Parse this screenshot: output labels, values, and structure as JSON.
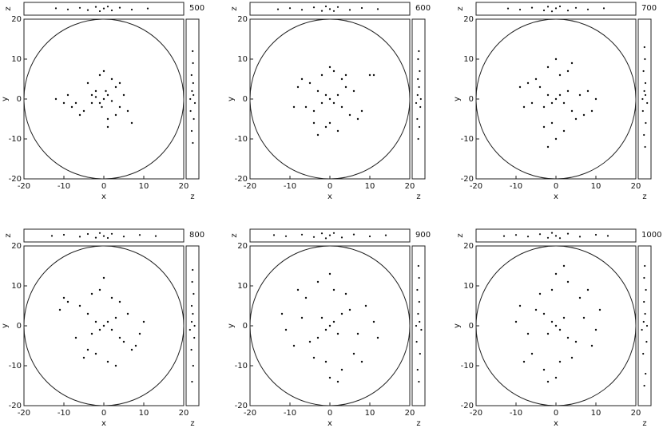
{
  "chart_data": {
    "type": "scatter",
    "xlim": [
      -20,
      20
    ],
    "ylim": [
      -20,
      20
    ],
    "zlim": [
      -4,
      4
    ],
    "xticks": [
      -20,
      -10,
      0,
      10,
      20
    ],
    "yticks": [
      -20,
      -10,
      0,
      10,
      20
    ],
    "xlabel": "x",
    "ylabel": "y",
    "zlabel": "z",
    "color": "#111111",
    "panels": [
      {
        "label": "500",
        "x": [
          0,
          1,
          -1,
          2,
          -2,
          0.5,
          -0.5,
          3,
          -3,
          4,
          -5,
          -8,
          -10,
          -12,
          -6,
          5,
          6,
          2,
          -4,
          1,
          -1,
          3,
          -2,
          7,
          -7,
          0,
          1,
          -3,
          4,
          -9
        ],
        "y": [
          0,
          1,
          -1,
          -0.5,
          0.5,
          2,
          -2,
          3,
          -1,
          -2,
          -3,
          -2,
          -1,
          0,
          -4,
          1,
          -3,
          5,
          4,
          -5,
          6,
          -4,
          2,
          -6,
          -1,
          7,
          -7,
          1,
          4,
          1
        ],
        "top_x": [
          -12,
          -9,
          -6,
          -4,
          -2,
          -1,
          0,
          1,
          2,
          4,
          7,
          11
        ],
        "top_z": [
          0.3,
          -0.4,
          0.6,
          -0.8,
          1.2,
          -1.5,
          0.2,
          1.4,
          -1,
          0.7,
          -0.5,
          0.2
        ],
        "side_z": [
          0.2,
          -0.5,
          0.8,
          -1.2,
          1.5,
          -1.4,
          0.6,
          -0.3,
          0.4,
          -0.6,
          0.3,
          0.1
        ],
        "side_y": [
          -11,
          -8,
          -5,
          -3,
          -1,
          0,
          1,
          2,
          4,
          6,
          9,
          12
        ]
      },
      {
        "label": "600",
        "x": [
          0,
          1,
          -1,
          2,
          -2,
          3,
          -3,
          4,
          -4,
          5,
          -5,
          6,
          -6,
          8,
          -8,
          10,
          -9,
          1,
          -1,
          2,
          -2,
          3,
          0,
          0,
          7,
          -7,
          4,
          -4,
          11,
          -3
        ],
        "y": [
          0,
          -1,
          1,
          1,
          -1,
          -2,
          2,
          3,
          -3,
          -4,
          4,
          2,
          -2,
          -3,
          3,
          6,
          -2,
          7,
          -7,
          -8,
          6,
          5,
          -6,
          8,
          -5,
          5,
          6,
          -6,
          6,
          -9
        ],
        "top_x": [
          -13,
          -10,
          -7,
          -4,
          -2,
          -1,
          0,
          1,
          2,
          5,
          8,
          12
        ],
        "top_z": [
          -0.3,
          0.4,
          -0.6,
          0.9,
          -1.3,
          1.5,
          -0.2,
          -1.4,
          1.1,
          -0.7,
          0.5,
          -0.2
        ],
        "side_z": [
          -0.2,
          0.5,
          -0.8,
          1.1,
          -1.5,
          1.4,
          -0.6,
          0.3,
          -0.4,
          0.7,
          -0.3,
          0.2
        ],
        "side_y": [
          -10,
          -7,
          -5,
          -2,
          -1,
          0,
          1,
          3,
          5,
          7,
          10,
          12
        ]
      },
      {
        "label": "700",
        "x": [
          0,
          1,
          -1,
          2,
          -2,
          3,
          -3,
          4,
          -4,
          6,
          -6,
          8,
          -8,
          9,
          -9,
          1,
          -1,
          2,
          -2,
          5,
          -5,
          0,
          0,
          3,
          -3,
          7,
          -7,
          10,
          -2,
          4
        ],
        "y": [
          0,
          1,
          -1,
          -1,
          1,
          2,
          -2,
          -3,
          3,
          1,
          -1,
          2,
          -2,
          -3,
          3,
          6,
          -6,
          -8,
          8,
          -5,
          5,
          10,
          -10,
          7,
          -7,
          -4,
          4,
          0,
          -12,
          9
        ],
        "top_x": [
          -12,
          -9,
          -6,
          -3,
          -2,
          -1,
          0,
          1,
          3,
          5,
          8,
          12
        ],
        "top_z": [
          0.2,
          -0.5,
          0.7,
          -1,
          1.3,
          -1.6,
          0.3,
          1.5,
          -1.1,
          0.6,
          -0.4,
          0.3
        ],
        "side_z": [
          0.3,
          -0.4,
          0.7,
          -1.1,
          1.6,
          -1.3,
          0.5,
          -0.2,
          0.5,
          -0.7,
          0.2,
          -0.1
        ],
        "side_y": [
          -12,
          -9,
          -6,
          -3,
          -1,
          0,
          1,
          2,
          4,
          7,
          10,
          13
        ]
      },
      {
        "label": "800",
        "x": [
          0,
          1,
          -1,
          2,
          -2,
          3,
          -3,
          4,
          -4,
          5,
          -6,
          -9,
          -11,
          -7,
          6,
          8,
          10,
          2,
          -2,
          1,
          -1,
          3,
          -3,
          0,
          7,
          -5,
          4,
          -4,
          9,
          -10
        ],
        "y": [
          0,
          1,
          -1,
          -1,
          1,
          2,
          -2,
          -3,
          3,
          -4,
          5,
          6,
          4,
          -3,
          3,
          -5,
          1,
          7,
          -7,
          -9,
          9,
          -10,
          8,
          12,
          -6,
          -8,
          6,
          -6,
          -2,
          7
        ],
        "top_x": [
          -13,
          -10,
          -6,
          -4,
          -2,
          -1,
          0,
          1,
          2,
          5,
          9,
          13
        ],
        "top_z": [
          -0.2,
          0.5,
          -0.7,
          1,
          -1.3,
          1.6,
          -0.3,
          -1.5,
          1.1,
          -0.6,
          0.4,
          -0.3
        ],
        "side_z": [
          -0.3,
          0.4,
          -0.7,
          1.1,
          -1.6,
          1.3,
          -0.5,
          0.2,
          -0.5,
          0.7,
          -0.2,
          0.1
        ],
        "side_y": [
          -14,
          -10,
          -6,
          -3,
          -1,
          0,
          1,
          3,
          5,
          8,
          11,
          14
        ]
      },
      {
        "label": "900",
        "x": [
          0,
          1,
          -1,
          2,
          -2,
          3,
          -3,
          5,
          -5,
          7,
          -7,
          9,
          -9,
          11,
          -11,
          1,
          -1,
          3,
          -3,
          6,
          -6,
          0,
          0,
          4,
          -4,
          8,
          -8,
          12,
          -12,
          2
        ],
        "y": [
          0,
          1,
          -1,
          -2,
          2,
          3,
          -3,
          4,
          -4,
          -2,
          2,
          5,
          -5,
          1,
          -1,
          9,
          -9,
          -11,
          11,
          -7,
          7,
          13,
          -13,
          8,
          -8,
          -9,
          9,
          -3,
          3,
          -14
        ],
        "top_x": [
          -14,
          -11,
          -7,
          -4,
          -2,
          -1,
          0,
          1,
          3,
          6,
          10,
          14
        ],
        "top_z": [
          0.3,
          -0.4,
          0.6,
          -0.9,
          1.4,
          -1.7,
          0.2,
          1.6,
          -1.2,
          0.7,
          -0.5,
          0.2
        ],
        "side_z": [
          0.2,
          -0.6,
          0.9,
          -1.2,
          1.7,
          -1.5,
          0.6,
          -0.3,
          0.4,
          -0.8,
          0.3,
          -0.1
        ],
        "side_y": [
          -14,
          -11,
          -7,
          -4,
          -1,
          0,
          1,
          3,
          6,
          9,
          12,
          15
        ]
      },
      {
        "label": "1000",
        "x": [
          0,
          1,
          -1,
          2,
          -2,
          3,
          -3,
          5,
          -5,
          7,
          -7,
          9,
          -9,
          10,
          -10,
          1,
          -1,
          3,
          -3,
          6,
          -6,
          0,
          0,
          4,
          -4,
          8,
          -8,
          11,
          -2,
          2
        ],
        "y": [
          0,
          -1,
          1,
          2,
          -2,
          -3,
          3,
          -4,
          4,
          2,
          -2,
          -5,
          5,
          -1,
          1,
          -9,
          9,
          11,
          -11,
          7,
          -7,
          -13,
          13,
          -8,
          8,
          9,
          -9,
          4,
          -14,
          15
        ],
        "top_x": [
          -13,
          -10,
          -7,
          -4,
          -2,
          -1,
          0,
          1,
          3,
          6,
          10,
          13
        ],
        "top_z": [
          -0.3,
          0.4,
          -0.6,
          0.9,
          -1.4,
          1.7,
          -0.2,
          -1.6,
          1.2,
          -0.7,
          0.5,
          -0.2
        ],
        "side_z": [
          -0.2,
          0.6,
          -0.9,
          1.2,
          -1.7,
          1.5,
          -0.6,
          0.3,
          -0.4,
          0.8,
          -0.3,
          0.1
        ],
        "side_y": [
          -15,
          -12,
          -7,
          -4,
          -1,
          0,
          1,
          3,
          6,
          9,
          12,
          15
        ]
      }
    ]
  }
}
